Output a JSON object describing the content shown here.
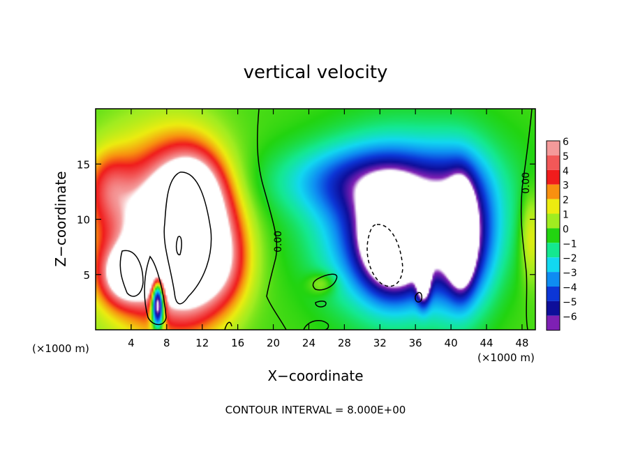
{
  "chart_data": {
    "type": "heatmap",
    "title": "vertical velocity",
    "xlabel": "X−coordinate",
    "ylabel": "Z−coordinate",
    "x_unit_left": "(×1000 m)",
    "x_unit_right": "(×1000 m)",
    "footer": "CONTOUR INTERVAL = 8.000E+00",
    "xlim": [
      0,
      49.5
    ],
    "ylim": [
      0,
      20
    ],
    "x_ticks": [
      4,
      8,
      12,
      16,
      20,
      24,
      28,
      32,
      36,
      40,
      44,
      48
    ],
    "x_tick_labels": [
      "4",
      "8",
      "12",
      "16",
      "20",
      "24",
      "28",
      "32",
      "36",
      "40",
      "44",
      "48"
    ],
    "y_ticks": [
      5,
      10,
      15
    ],
    "y_tick_labels": [
      "5",
      "10",
      "15"
    ],
    "contour_labels": [
      "0.00",
      "0.00"
    ],
    "colorbar": {
      "values": [
        6,
        5,
        4,
        3,
        2,
        1,
        0,
        -1,
        -2,
        -3,
        -4,
        -5,
        -6
      ],
      "labels": [
        "6",
        "5",
        "4",
        "3",
        "2",
        "1",
        "0",
        "−1",
        "−2",
        "−3",
        "−4",
        "−5",
        "−6"
      ],
      "colors": [
        "#f49a9a",
        "#f25858",
        "#f01c1c",
        "#f89010",
        "#ecec10",
        "#a0ec20",
        "#22d410",
        "#14e890",
        "#12d8f0",
        "#0e8cf2",
        "#0c36d6",
        "#0e0e9a",
        "#7e20b4"
      ]
    },
    "features": [
      {
        "sign": "up",
        "x": 6.5,
        "z": 8.5,
        "rx": 6.5,
        "rz": 7.5,
        "peak": 6.5
      },
      {
        "sign": "up",
        "x": 10.5,
        "z": 8.5,
        "rx": 4.2,
        "rz": 6.2,
        "peak": 12
      },
      {
        "sign": "up",
        "x": 3.5,
        "z": 5.0,
        "rx": 2.6,
        "rz": 2.4,
        "peak": 7
      },
      {
        "sign": "up",
        "x": 1.5,
        "z": 13.0,
        "rx": 2.5,
        "rz": 3.0,
        "peak": 2.5
      },
      {
        "sign": "up",
        "x": 11.0,
        "z": 12.5,
        "rx": 2.8,
        "rz": 3.0,
        "peak": 3
      },
      {
        "sign": "up",
        "x": 14.5,
        "z": 6.0,
        "rx": 3.0,
        "rz": 4.0,
        "peak": 2.5
      },
      {
        "sign": "down",
        "x": 7.0,
        "z": 2.5,
        "rx": 0.7,
        "rz": 2.2,
        "peak": -13
      },
      {
        "sign": "down",
        "x": 33.5,
        "z": 8.5,
        "rx": 7.0,
        "rz": 6.5,
        "peak": -5
      },
      {
        "sign": "down",
        "x": 33.5,
        "z": 8.0,
        "rx": 3.2,
        "rz": 4.0,
        "peak": -9
      },
      {
        "sign": "down",
        "x": 41.0,
        "z": 8.5,
        "rx": 3.5,
        "rz": 6.0,
        "peak": -6
      },
      {
        "sign": "down",
        "x": 41.2,
        "z": 8.5,
        "rx": 1.3,
        "rz": 4.0,
        "peak": -9
      },
      {
        "sign": "down",
        "x": 36.9,
        "z": 4.5,
        "rx": 0.7,
        "rz": 2.0,
        "peak": -7
      },
      {
        "sign": "down",
        "x": 30.0,
        "z": 13.5,
        "rx": 9.0,
        "rz": 3.0,
        "peak": -3
      },
      {
        "sign": "down",
        "x": 36.5,
        "z": 11.5,
        "rx": 11.0,
        "rz": 6.5,
        "peak": -2
      },
      {
        "sign": "up",
        "x": 25.5,
        "z": 4.2,
        "rx": 1.6,
        "rz": 1.0,
        "peak": 1.5
      },
      {
        "sign": "up",
        "x": 49.0,
        "z": 8.5,
        "rx": 1.2,
        "rz": 4.0,
        "peak": 2
      }
    ]
  }
}
